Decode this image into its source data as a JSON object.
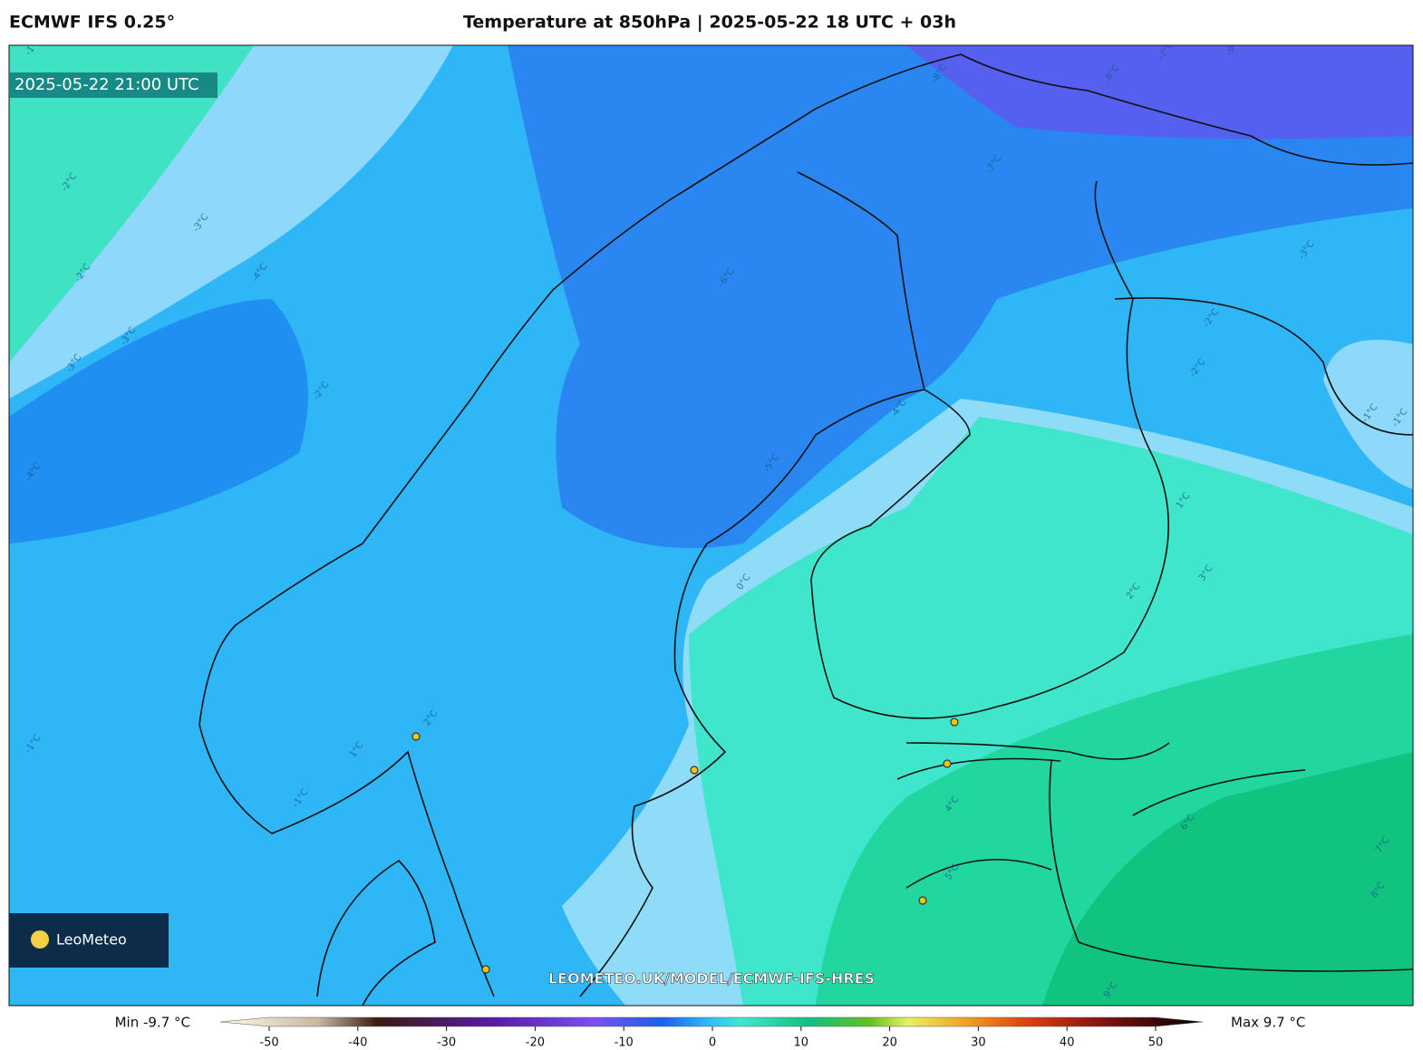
{
  "header": {
    "model": "ECMWF IFS 0.25°",
    "title": "Temperature at 850hPa | 2025-05-22 18 UTC + 03h"
  },
  "map": {
    "valid_time": "2025-05-22 21:00 UTC",
    "watermark": "LEOMETEO.UK/MODEL/ECMWF-IFS-HRES",
    "logo": "LeoMeteo",
    "contour_labels": [
      "-8°C",
      "-7°C",
      "-9°C",
      "-8°C",
      "-7°C",
      "-6°C",
      "-5°C",
      "-4°C",
      "-3°C",
      "-2°C",
      "-1°C",
      "0°C",
      "1°C",
      "2°C",
      "3°C",
      "2°C",
      "1°C",
      "-1°C",
      "-2°C",
      "-3°C",
      "-4°C",
      "-3°C",
      "-2°C",
      "-1°C",
      "-1°C",
      "-2°C",
      "4°C",
      "5°C",
      "6°C",
      "7°C",
      "8°C",
      "9°C",
      "-4°C",
      "-3°C",
      "-2°C",
      "-1°C"
    ]
  },
  "colorbar": {
    "min_label": "Min -9.7 °C",
    "max_label": "Max 9.7 °C",
    "clim": [
      -50,
      50
    ],
    "ticks": [
      -50,
      -40,
      -30,
      -20,
      -10,
      0,
      10,
      20,
      30,
      40,
      50
    ]
  }
}
